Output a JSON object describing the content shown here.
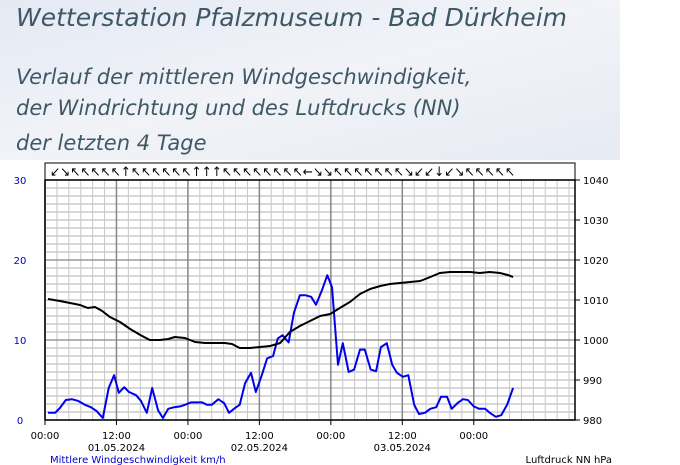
{
  "chart_data": {
    "type": "line",
    "title": "Wetterstation Pfalzmuseum - Bad Dürkheim",
    "subtitle": [
      "Verlauf der mittleren Windgeschwindigkeit,",
      "der Windrichtung und des Luftdrucks (NN)",
      "der letzten 4 Tage"
    ],
    "wind_direction": "↙↘↖↖↖↖↖↑↖↖↖↖↖↖↑↑↑↖↖↖↖↖↖↖↖←↘↘↖↖↖↖↖↖↖↘↙↙↓↙↘↖↖↖↖↖",
    "ylabel": "Mittlere Windgeschwindigkeit km/h",
    "y2label": "Luftdruck NN hPa",
    "xlim": [
      0,
      89
    ],
    "xticks": [
      {
        "value": 0,
        "label": "00:00"
      },
      {
        "value": 12,
        "label": "12:00"
      },
      {
        "value": 24,
        "label": "00:00"
      },
      {
        "value": 36,
        "label": "12:00"
      },
      {
        "value": 48,
        "label": "00:00"
      },
      {
        "value": 60,
        "label": "12:00"
      },
      {
        "value": 72,
        "label": "00:00"
      }
    ],
    "xtick_dates": [
      {
        "value": 12,
        "label": "01.05.2024"
      },
      {
        "value": 36,
        "label": "02.05.2024"
      },
      {
        "value": 60,
        "label": "03.05.2024"
      }
    ],
    "xminor_ticks": [
      0,
      2,
      4,
      6,
      8,
      10,
      12,
      14,
      16,
      18,
      20,
      22,
      24,
      26,
      28,
      30,
      32,
      34,
      36,
      38,
      40,
      42,
      44,
      46,
      48,
      50,
      52,
      54,
      56,
      58,
      60,
      62,
      64,
      66,
      68,
      70,
      72,
      74,
      76,
      78,
      80,
      82,
      84,
      86,
      88
    ],
    "ylim": [
      0,
      30
    ],
    "yticks": [
      0,
      10,
      20,
      30
    ],
    "yminor_ticks": [
      0,
      1,
      2,
      3,
      4,
      5,
      6,
      7,
      8,
      9,
      10,
      11,
      12,
      13,
      14,
      15,
      16,
      17,
      18,
      19,
      20,
      21,
      22,
      23,
      24,
      25,
      26,
      27,
      28,
      29,
      30
    ],
    "y2lim": [
      980,
      1040
    ],
    "y2ticks": [
      980,
      990,
      1000,
      1010,
      1020,
      1030,
      1040
    ],
    "grid": true,
    "series": [
      {
        "name": "Mittlere Windgeschwindigkeit",
        "color": "#0000ee",
        "x": [
          0.5,
          1.7,
          2.5,
          3.5,
          4.5,
          5.5,
          6.7,
          7.7,
          8.7,
          9.7,
          10.7,
          11.6,
          12.4,
          13.3,
          14.1,
          15.3,
          16.1,
          17.1,
          18,
          19,
          19.8,
          20.7,
          21.7,
          22.7,
          23.5,
          24.5,
          25.4,
          26.4,
          27.2,
          28,
          29.1,
          30.1,
          30.9,
          31.9,
          32.7,
          33.6,
          34.6,
          35.4,
          36.4,
          37.3,
          38.3,
          39.1,
          39.9,
          40.9,
          41.8,
          42.8,
          43.7,
          44.7,
          45.5,
          46.5,
          47.4,
          48.2,
          49.2,
          50,
          51,
          51.9,
          52.9,
          53.7,
          54.7,
          55.6,
          56.4,
          57.4,
          58.3,
          59.1,
          60.1,
          61,
          62,
          62.8,
          63.8,
          64.7,
          65.7,
          66.5,
          67.5,
          68.3,
          69.4,
          70.2,
          71,
          72,
          72.9,
          73.9,
          74.7,
          75.7,
          76.6,
          77.6,
          78.6
        ],
        "values": [
          0.9,
          0.9,
          1.5,
          2.5,
          2.6,
          2.4,
          1.9,
          1.6,
          1.1,
          0.25,
          4,
          5.6,
          3.4,
          4.1,
          3.5,
          3.1,
          2.4,
          0.9,
          4,
          1.2,
          0.25,
          1.4,
          1.6,
          1.7,
          1.9,
          2.2,
          2.2,
          2.2,
          1.9,
          1.9,
          2.6,
          2.1,
          0.9,
          1.5,
          1.9,
          4.6,
          5.9,
          3.5,
          5.6,
          7.7,
          8,
          10.2,
          10.6,
          9.7,
          13.4,
          15.6,
          15.6,
          15.4,
          14.4,
          16.2,
          18.1,
          16.6,
          6.9,
          9.6,
          6,
          6.3,
          8.8,
          8.8,
          6.3,
          6.1,
          9.1,
          9.6,
          6.9,
          5.9,
          5.4,
          5.6,
          1.9,
          0.75,
          0.9,
          1.4,
          1.6,
          2.9,
          2.9,
          1.4,
          2.2,
          2.6,
          2.5,
          1.7,
          1.4,
          1.4,
          0.9,
          0.4,
          0.6,
          1.9,
          4
        ]
      },
      {
        "name": "Luftdruck NN",
        "color": "#000000",
        "axis": "y2",
        "x": [
          0.5,
          2.5,
          4.2,
          5.9,
          7.2,
          8.4,
          9.6,
          10.9,
          12.6,
          14.3,
          16,
          17.6,
          19.3,
          20.7,
          21.8,
          23.5,
          25.2,
          26.9,
          28.5,
          30.2,
          31.4,
          32.7,
          34.4,
          36.1,
          37.8,
          39.5,
          41.1,
          42.8,
          44.5,
          46.2,
          47.9,
          49.5,
          51.2,
          52.9,
          54.6,
          56.3,
          57.9,
          59.6,
          61.3,
          63,
          64.7,
          66.3,
          68,
          69.7,
          71.4,
          73,
          74.7,
          76.4,
          77.7,
          78.6
        ],
        "values": [
          1010.25,
          1009.75,
          1009.25,
          1008.75,
          1008,
          1008.25,
          1007.25,
          1005.75,
          1004.5,
          1002.75,
          1001.25,
          1000,
          1000,
          1000.25,
          1000.75,
          1000.5,
          999.5,
          999.25,
          999.25,
          999.25,
          999,
          998,
          998,
          998.25,
          998.5,
          999.25,
          1002,
          1003.5,
          1004.75,
          1006,
          1006.5,
          1008,
          1009.5,
          1011.5,
          1012.75,
          1013.5,
          1014,
          1014.25,
          1014.5,
          1014.75,
          1015.75,
          1016.75,
          1017,
          1017,
          1017,
          1016.75,
          1017,
          1016.75,
          1016.25,
          1015.75
        ]
      }
    ]
  }
}
